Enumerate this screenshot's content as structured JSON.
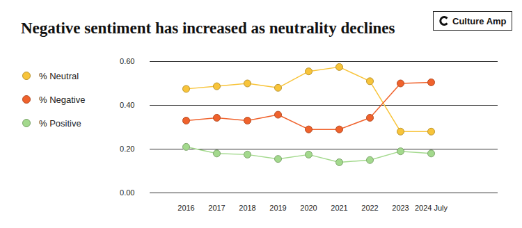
{
  "chart_data": {
    "type": "line",
    "title": "Negative sentiment has increased as neutrality declines",
    "categories": [
      "2016",
      "2017",
      "2018",
      "2019",
      "2020",
      "2021",
      "2022",
      "2023",
      "2024 July"
    ],
    "series": [
      {
        "name": "% Neutral",
        "color": "#f8c43a",
        "values": [
          0.475,
          0.487,
          0.5,
          0.48,
          0.555,
          0.575,
          0.51,
          0.28,
          0.28
        ]
      },
      {
        "name": "% Negative",
        "color": "#f0622c",
        "values": [
          0.33,
          0.343,
          0.33,
          0.357,
          0.29,
          0.29,
          0.343,
          0.5,
          0.505
        ]
      },
      {
        "name": "% Positive",
        "color": "#a3d98d",
        "values": [
          0.21,
          0.18,
          0.175,
          0.155,
          0.175,
          0.14,
          0.15,
          0.19,
          0.18
        ]
      }
    ],
    "ylim": [
      0,
      0.6
    ],
    "yticks": [
      {
        "value": 0,
        "label": "0.00"
      },
      {
        "value": 0.2,
        "label": "0.20"
      },
      {
        "value": 0.4,
        "label": "0.40"
      },
      {
        "value": 0.6,
        "label": "0.60"
      }
    ],
    "grid": true,
    "legend": "left",
    "marker": "circle"
  },
  "logo": "Culture Amp"
}
